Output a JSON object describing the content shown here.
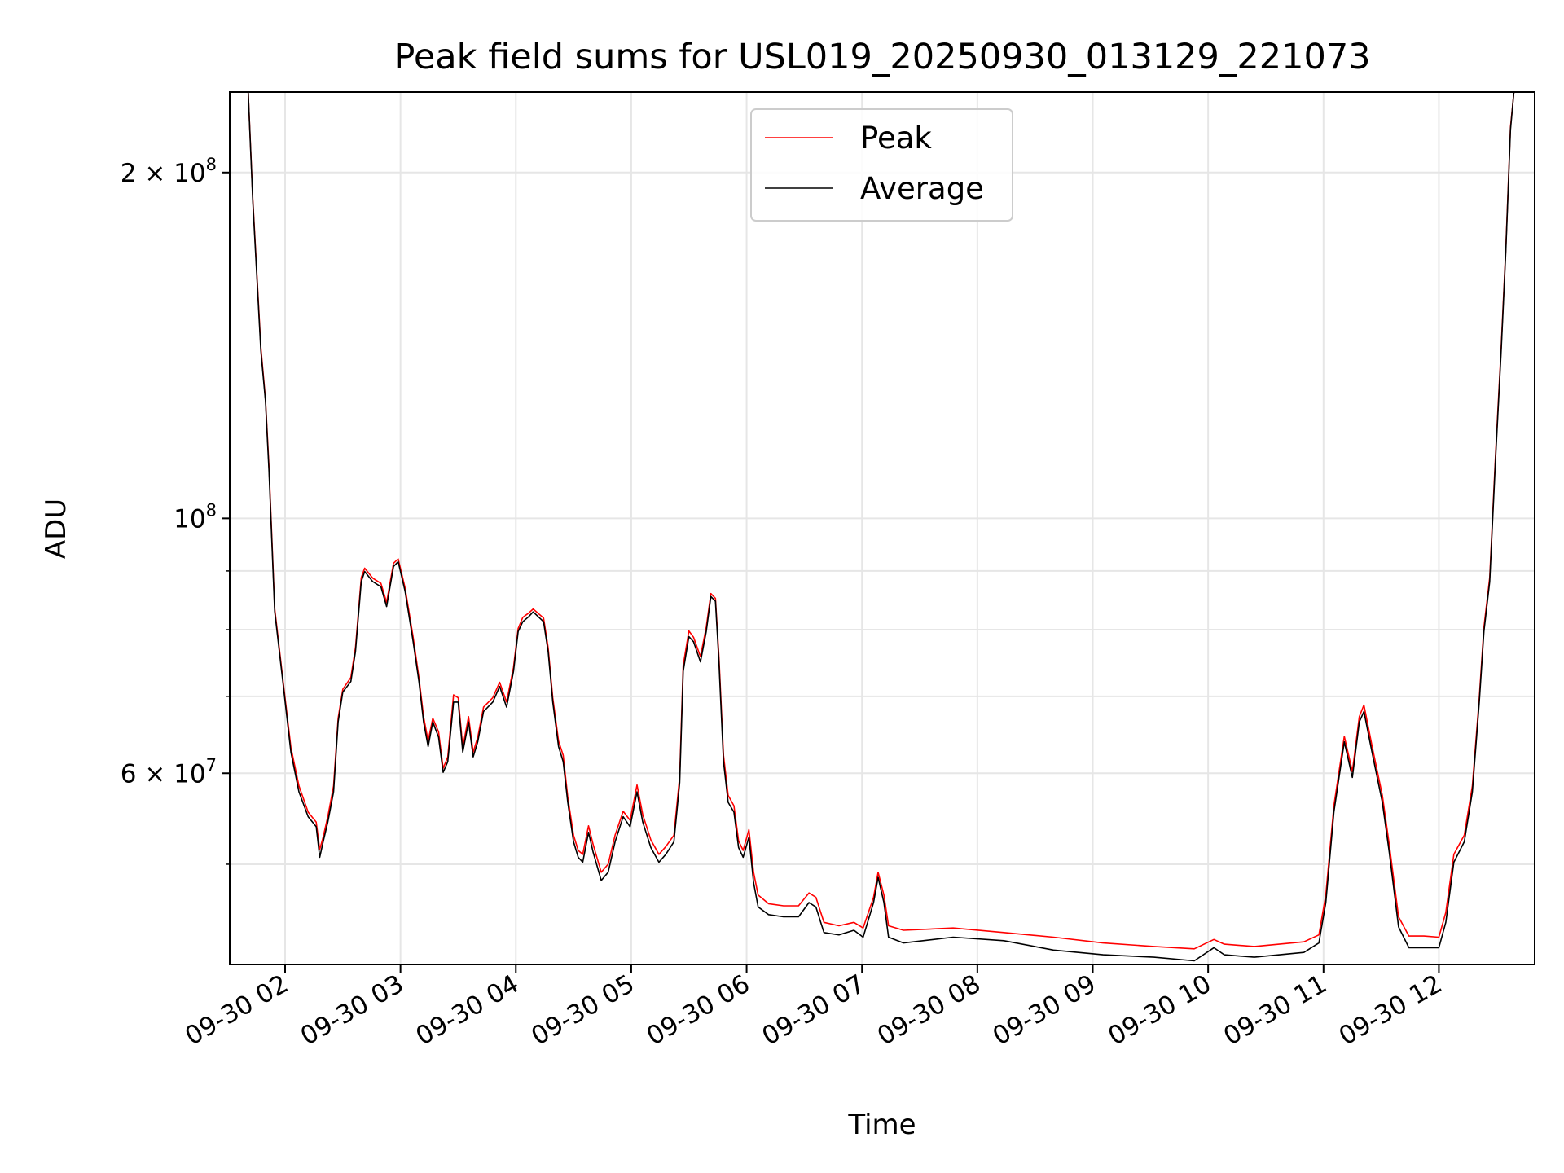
{
  "chart_data": {
    "type": "line",
    "title": "Peak field sums for USL019_20250930_013129_221073",
    "xlabel": "Time",
    "ylabel": "ADU",
    "yscale": "log",
    "xlim_hours": [
      1.52,
      12.83
    ],
    "ylim": [
      40900000.0,
      235000000.0
    ],
    "grid": true,
    "legend": {
      "placement": "top-center",
      "entries": [
        "Peak",
        "Average"
      ]
    },
    "colors": {
      "Peak": "#ff0000",
      "Average": "#000000",
      "grid": "#e6e6e6"
    },
    "x_ticks": [
      {
        "hour": 2,
        "label": "09-30 02"
      },
      {
        "hour": 3,
        "label": "09-30 03"
      },
      {
        "hour": 4,
        "label": "09-30 04"
      },
      {
        "hour": 5,
        "label": "09-30 05"
      },
      {
        "hour": 6,
        "label": "09-30 06"
      },
      {
        "hour": 7,
        "label": "09-30 07"
      },
      {
        "hour": 8,
        "label": "09-30 08"
      },
      {
        "hour": 9,
        "label": "09-30 09"
      },
      {
        "hour": 10,
        "label": "09-30 10"
      },
      {
        "hour": 11,
        "label": "09-30 11"
      },
      {
        "hour": 12,
        "label": "09-30 12"
      }
    ],
    "y_major_ticks": [
      {
        "value": 200000000.0,
        "mantissa": "2 × 10",
        "exp": "8"
      },
      {
        "value": 100000000.0,
        "mantissa": "10",
        "exp": "8"
      },
      {
        "value": 60000000.0,
        "mantissa": "6 × 10",
        "exp": "7"
      }
    ],
    "y_minor_ticks": [
      50000000.0,
      70000000.0,
      80000000.0,
      90000000.0
    ],
    "x": [
      1.54,
      1.68,
      1.72,
      1.79,
      1.83,
      1.86,
      1.91,
      1.98,
      2.05,
      2.12,
      2.2,
      2.27,
      2.3,
      2.33,
      2.37,
      2.42,
      2.46,
      2.5,
      2.57,
      2.61,
      2.66,
      2.69,
      2.76,
      2.83,
      2.88,
      2.94,
      2.98,
      3.04,
      3.11,
      3.16,
      3.2,
      3.24,
      3.28,
      3.33,
      3.37,
      3.41,
      3.46,
      3.5,
      3.54,
      3.59,
      3.63,
      3.67,
      3.72,
      3.8,
      3.86,
      3.92,
      3.98,
      4.02,
      4.06,
      4.11,
      4.15,
      4.24,
      4.28,
      4.32,
      4.37,
      4.41,
      4.45,
      4.5,
      4.54,
      4.58,
      4.63,
      4.67,
      4.74,
      4.8,
      4.86,
      4.93,
      4.99,
      5.05,
      5.1,
      5.17,
      5.24,
      5.3,
      5.37,
      5.42,
      5.45,
      5.5,
      5.54,
      5.6,
      5.65,
      5.69,
      5.73,
      5.76,
      5.8,
      5.84,
      5.89,
      5.93,
      5.97,
      6.02,
      6.06,
      6.1,
      6.19,
      6.32,
      6.45,
      6.54,
      6.6,
      6.67,
      6.8,
      6.93,
      7.01,
      7.1,
      7.14,
      7.19,
      7.23,
      7.36,
      7.79,
      8.23,
      8.66,
      9.09,
      9.53,
      9.88,
      10.05,
      10.14,
      10.4,
      10.83,
      10.96,
      11.02,
      11.09,
      11.18,
      11.25,
      11.31,
      11.35,
      11.42,
      11.51,
      11.57,
      11.65,
      11.74,
      11.87,
      12.0,
      12.06,
      12.13,
      12.22,
      12.29,
      12.35,
      12.39,
      12.44,
      12.49,
      12.54,
      12.58,
      12.62,
      12.65,
      12.83
    ],
    "series": [
      {
        "name": "Average",
        "values": [
          235000000.0,
          235000000.0,
          189000000.0,
          140000000.0,
          126500000.0,
          110000000.0,
          83000000.0,
          72100000.0,
          62600000.0,
          57800000.0,
          55000000.0,
          53900000.0,
          50700000.0,
          52300000.0,
          54400000.0,
          57800000.0,
          66500000.0,
          70600000.0,
          72100000.0,
          76600000.0,
          88100000.0,
          89900000.0,
          88100000.0,
          87200000.0,
          83800000.0,
          90800000.0,
          91700000.0,
          86400000.0,
          78100000.0,
          72100000.0,
          66500000.0,
          63300000.0,
          66500000.0,
          64500000.0,
          60100000.0,
          61400000.0,
          69200000.0,
          69200000.0,
          62600000.0,
          66500000.0,
          62000000.0,
          63900000.0,
          67900000.0,
          69200000.0,
          71400000.0,
          68500000.0,
          73600000.0,
          79700000.0,
          81300000.0,
          82100000.0,
          82900000.0,
          81300000.0,
          76600000.0,
          69200000.0,
          63300000.0,
          61400000.0,
          56600000.0,
          52300000.0,
          50700000.0,
          50200000.0,
          53300000.0,
          51200000.0,
          48400000.0,
          49200000.0,
          52300000.0,
          55000000.0,
          53900000.0,
          57800000.0,
          54400000.0,
          51700000.0,
          50200000.0,
          51000000.0,
          52300000.0,
          58900000.0,
          73600000.0,
          78900000.0,
          78100000.0,
          75000000.0,
          79700000.0,
          85500000.0,
          84700000.0,
          75000000.0,
          61400000.0,
          56600000.0,
          55500000.0,
          51700000.0,
          50700000.0,
          52800000.0,
          48200000.0,
          45900000.0,
          45200000.0,
          45000000.0,
          45000000.0,
          46300000.0,
          45900000.0,
          43600000.0,
          43400000.0,
          43800000.0,
          43200000.0,
          46300000.0,
          48700000.0,
          46300000.0,
          43200000.0,
          42700000.0,
          43200000.0,
          42900000.0,
          42100000.0,
          41700000.0,
          41500000.0,
          41200000.0,
          42300000.0,
          41700000.0,
          41500000.0,
          41900000.0,
          42700000.0,
          46300000.0,
          55500000.0,
          63900000.0,
          59500000.0,
          66500000.0,
          67900000.0,
          62600000.0,
          56600000.0,
          51200000.0,
          44100000.0,
          42300000.0,
          42300000.0,
          42300000.0,
          44500000.0,
          50200000.0,
          52300000.0,
          57800000.0,
          69200000.0,
          79700000.0,
          88100000.0,
          112000000.0,
          140000000.0,
          171000000.0,
          218000000.0,
          235000000.0,
          235000000.0
        ]
      },
      {
        "name": "Peak",
        "values": [
          235000000.0,
          235000000.0,
          190000000.0,
          141000000.0,
          127000000.0,
          111000000.0,
          83500000.0,
          72500000.0,
          63200000.0,
          58500000.0,
          55500000.0,
          54400000.0,
          51500000.0,
          52800000.0,
          55000000.0,
          58500000.0,
          67000000.0,
          71000000.0,
          72700000.0,
          77200000.0,
          88800000.0,
          90500000.0,
          88700000.0,
          87800000.0,
          84500000.0,
          91400000.0,
          92200000.0,
          87000000.0,
          78800000.0,
          72700000.0,
          67200000.0,
          64000000.0,
          67000000.0,
          65200000.0,
          60600000.0,
          62000000.0,
          70200000.0,
          69800000.0,
          63200000.0,
          67200000.0,
          62600000.0,
          64500000.0,
          68500000.0,
          69800000.0,
          72000000.0,
          69200000.0,
          74200000.0,
          80200000.0,
          82000000.0,
          82700000.0,
          83400000.0,
          81900000.0,
          77200000.0,
          69800000.0,
          64000000.0,
          62200000.0,
          57200000.0,
          53000000.0,
          51400000.0,
          51000000.0,
          54000000.0,
          52000000.0,
          49200000.0,
          50000000.0,
          53000000.0,
          55600000.0,
          54600000.0,
          58600000.0,
          55200000.0,
          52500000.0,
          51000000.0,
          51800000.0,
          53000000.0,
          59600000.0,
          74500000.0,
          79800000.0,
          78800000.0,
          75800000.0,
          80400000.0,
          86000000.0,
          85200000.0,
          75800000.0,
          62200000.0,
          57400000.0,
          56200000.0,
          52400000.0,
          51400000.0,
          53600000.0,
          49200000.0,
          47000000.0,
          46200000.0,
          46000000.0,
          46000000.0,
          47200000.0,
          46800000.0,
          44500000.0,
          44200000.0,
          44500000.0,
          44000000.0,
          46800000.0,
          49200000.0,
          47000000.0,
          44200000.0,
          43800000.0,
          44000000.0,
          43600000.0,
          43200000.0,
          42700000.0,
          42400000.0,
          42200000.0,
          43000000.0,
          42600000.0,
          42400000.0,
          42800000.0,
          43400000.0,
          47000000.0,
          56200000.0,
          64600000.0,
          60200000.0,
          67200000.0,
          68800000.0,
          63400000.0,
          57400000.0,
          52000000.0,
          45000000.0,
          43300000.0,
          43300000.0,
          43200000.0,
          45400000.0,
          51000000.0,
          53000000.0,
          58500000.0,
          69800000.0,
          80400000.0,
          88800000.0,
          113000000.0,
          141000000.0,
          172000000.0,
          219000000.0,
          235000000.0,
          235000000.0
        ]
      }
    ]
  }
}
